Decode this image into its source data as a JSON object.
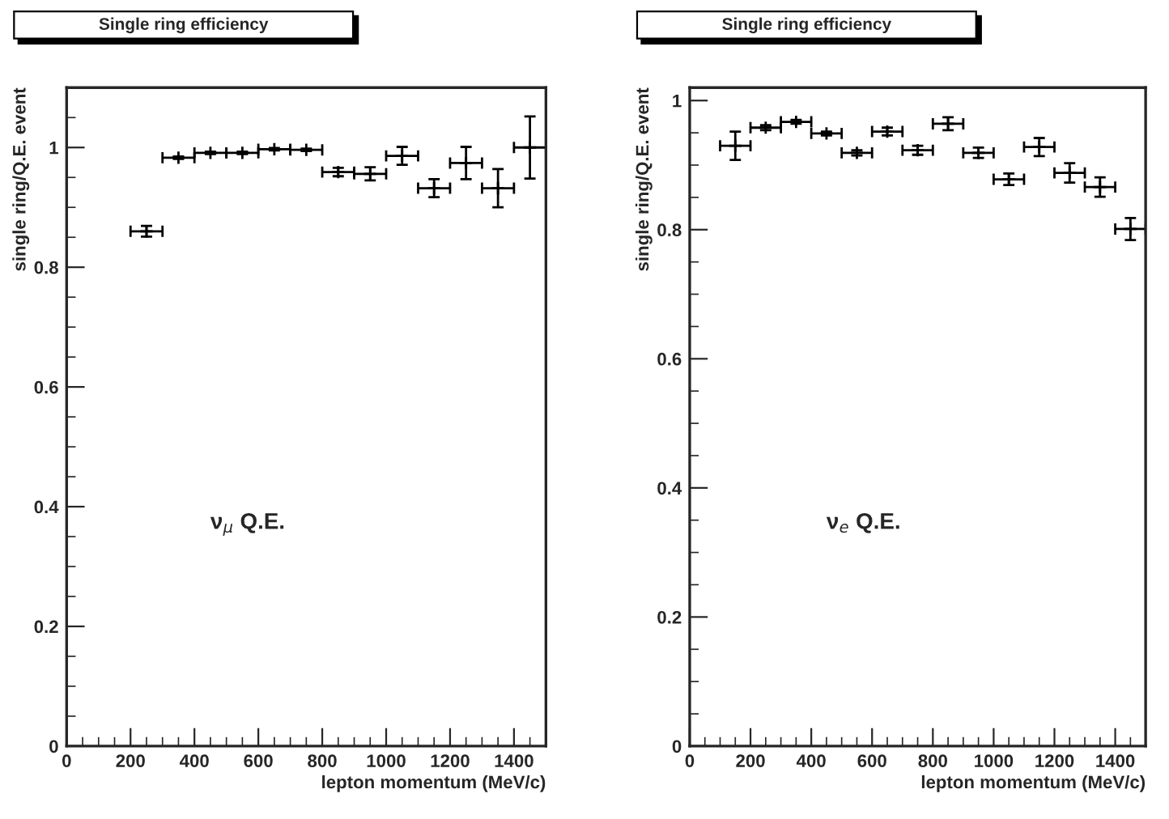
{
  "chart_data": [
    {
      "type": "scatter",
      "title": "Single ring efficiency",
      "xlabel": "lepton momentum (MeV/c)",
      "ylabel": "single ring/Q.E. event",
      "annotations": [
        "ν$_{μ}$ Q.E."
      ],
      "marker": "cross",
      "grid": false,
      "legend": false,
      "x": [
        250,
        350,
        450,
        550,
        650,
        750,
        850,
        950,
        1050,
        1150,
        1250,
        1350,
        1450
      ],
      "values": [
        0.86,
        0.983,
        0.991,
        0.991,
        0.997,
        0.996,
        0.959,
        0.956,
        0.986,
        0.932,
        0.974,
        0.932,
        1.0
      ],
      "errors": [
        0.009,
        0.002,
        0.002,
        0.002,
        0.002,
        0.002,
        0.007,
        0.011,
        0.015,
        0.015,
        0.027,
        0.032,
        0.052
      ],
      "xerrors": [
        50,
        50,
        50,
        50,
        50,
        50,
        50,
        50,
        50,
        50,
        50,
        50,
        50
      ],
      "xlim": [
        0,
        1500
      ],
      "ylim": [
        0,
        1.1
      ],
      "xticks": [
        0,
        200,
        400,
        600,
        800,
        1000,
        1200,
        1400
      ],
      "yticks": [
        0,
        0.2,
        0.4,
        0.6,
        0.8,
        1
      ]
    },
    {
      "type": "scatter",
      "title": "Single ring efficiency",
      "xlabel": "lepton momentum (MeV/c)",
      "ylabel": "single ring/Q.E. event",
      "annotations": [
        "ν$_{e}$ Q.E."
      ],
      "marker": "cross",
      "grid": false,
      "legend": false,
      "x": [
        150,
        250,
        350,
        450,
        550,
        650,
        750,
        850,
        950,
        1050,
        1150,
        1250,
        1350,
        1450
      ],
      "values": [
        0.93,
        0.958,
        0.967,
        0.949,
        0.919,
        0.952,
        0.923,
        0.964,
        0.919,
        0.878,
        0.928,
        0.888,
        0.866,
        0.801
      ],
      "errors": [
        0.022,
        0.004,
        0.003,
        0.003,
        0.004,
        0.006,
        0.007,
        0.01,
        0.008,
        0.009,
        0.014,
        0.015,
        0.015,
        0.017
      ],
      "xerrors": [
        50,
        50,
        50,
        50,
        50,
        50,
        50,
        50,
        50,
        50,
        50,
        50,
        50,
        50
      ],
      "xlim": [
        0,
        1500
      ],
      "ylim": [
        0,
        1.02
      ],
      "xticks": [
        0,
        200,
        400,
        600,
        800,
        1000,
        1200,
        1400
      ],
      "yticks": [
        0,
        0.2,
        0.4,
        0.6,
        0.8,
        1
      ]
    }
  ]
}
